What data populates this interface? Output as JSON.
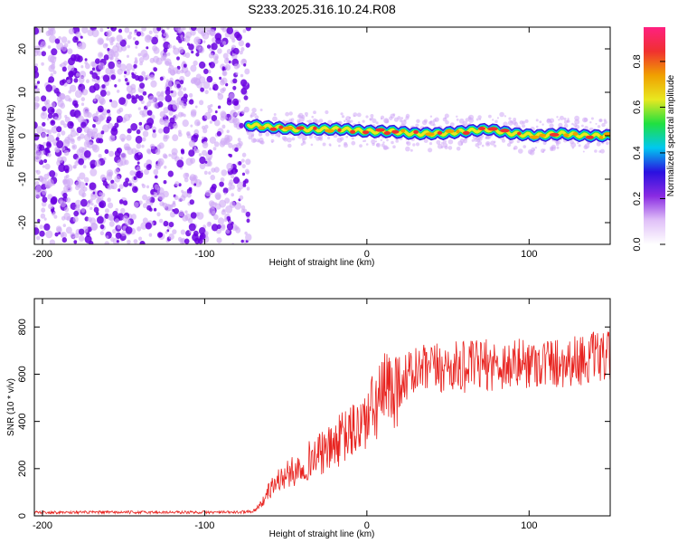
{
  "title": "S233.2025.316.10.24.R08",
  "colors": {
    "signal": "#e8231f",
    "noise_dark": "#6a00e0",
    "noise_light": "#cfa8f5",
    "frame": "#000000"
  },
  "colorbar": {
    "label": "Normalized spectral amplitude",
    "ticks": [
      "0.0",
      "0.2",
      "0.4",
      "0.6",
      "0.8"
    ],
    "tick_values": [
      0.0,
      0.2,
      0.4,
      0.6,
      0.8
    ],
    "range": [
      0,
      0.95
    ],
    "stops": [
      "#ffffff",
      "#e0c0f8",
      "#8a2be2",
      "#2a10e0",
      "#00c8f0",
      "#20e040",
      "#e8e820",
      "#f0a000",
      "#f03030",
      "#ff2080"
    ]
  },
  "chart_data": [
    {
      "type": "heatmap",
      "title": "S233.2025.316.10.24.R08",
      "xlabel": "Height of straight line (km)",
      "ylabel": "Frequency (Hz)",
      "xlim": [
        -205,
        150
      ],
      "ylim": [
        -25,
        25
      ],
      "x_ticks": [
        -200,
        -100,
        0,
        100
      ],
      "x_tick_labels": [
        "-200",
        "-100",
        "0",
        "100"
      ],
      "y_ticks": [
        -20,
        -10,
        0,
        10,
        20
      ],
      "y_tick_labels": [
        "-20",
        "-10",
        "0",
        "10",
        "20"
      ],
      "noise_region_x": [
        -205,
        -73
      ],
      "signal_start_x": -73,
      "signal_track": {
        "x": [
          -73,
          -60,
          -45,
          -30,
          -15,
          0,
          15,
          30,
          45,
          60,
          75,
          90,
          105,
          120,
          135,
          150
        ],
        "frequency": [
          2.5,
          2,
          1.5,
          1.5,
          1.5,
          1,
          1,
          0.5,
          0.5,
          1,
          1.5,
          0.5,
          0,
          0.5,
          0,
          0
        ]
      }
    },
    {
      "type": "line",
      "xlabel": "Height of straight line (km)",
      "ylabel": "SNR (10 * v/v)",
      "xlim": [
        -205,
        150
      ],
      "ylim": [
        0,
        920
      ],
      "x_ticks": [
        -200,
        -100,
        0,
        100
      ],
      "x_tick_labels": [
        "-200",
        "-100",
        "0",
        "100"
      ],
      "y_ticks": [
        0,
        200,
        400,
        600,
        800
      ],
      "y_tick_labels": [
        "0",
        "200",
        "400",
        "600",
        "800"
      ],
      "series": [
        {
          "name": "SNR",
          "x": [
            -205,
            -180,
            -150,
            -120,
            -100,
            -80,
            -70,
            -65,
            -60,
            -55,
            -50,
            -45,
            -40,
            -35,
            -30,
            -25,
            -20,
            -15,
            -10,
            -5,
            0,
            5,
            10,
            15,
            20,
            25,
            30,
            40,
            50,
            60,
            70,
            80,
            90,
            100,
            110,
            120,
            130,
            140,
            150
          ],
          "values": [
            15,
            15,
            15,
            15,
            15,
            15,
            20,
            50,
            110,
            150,
            170,
            190,
            210,
            240,
            260,
            270,
            300,
            330,
            350,
            380,
            410,
            460,
            510,
            540,
            570,
            590,
            610,
            620,
            630,
            630,
            640,
            640,
            640,
            650,
            650,
            650,
            660,
            670,
            670
          ]
        }
      ]
    }
  ]
}
